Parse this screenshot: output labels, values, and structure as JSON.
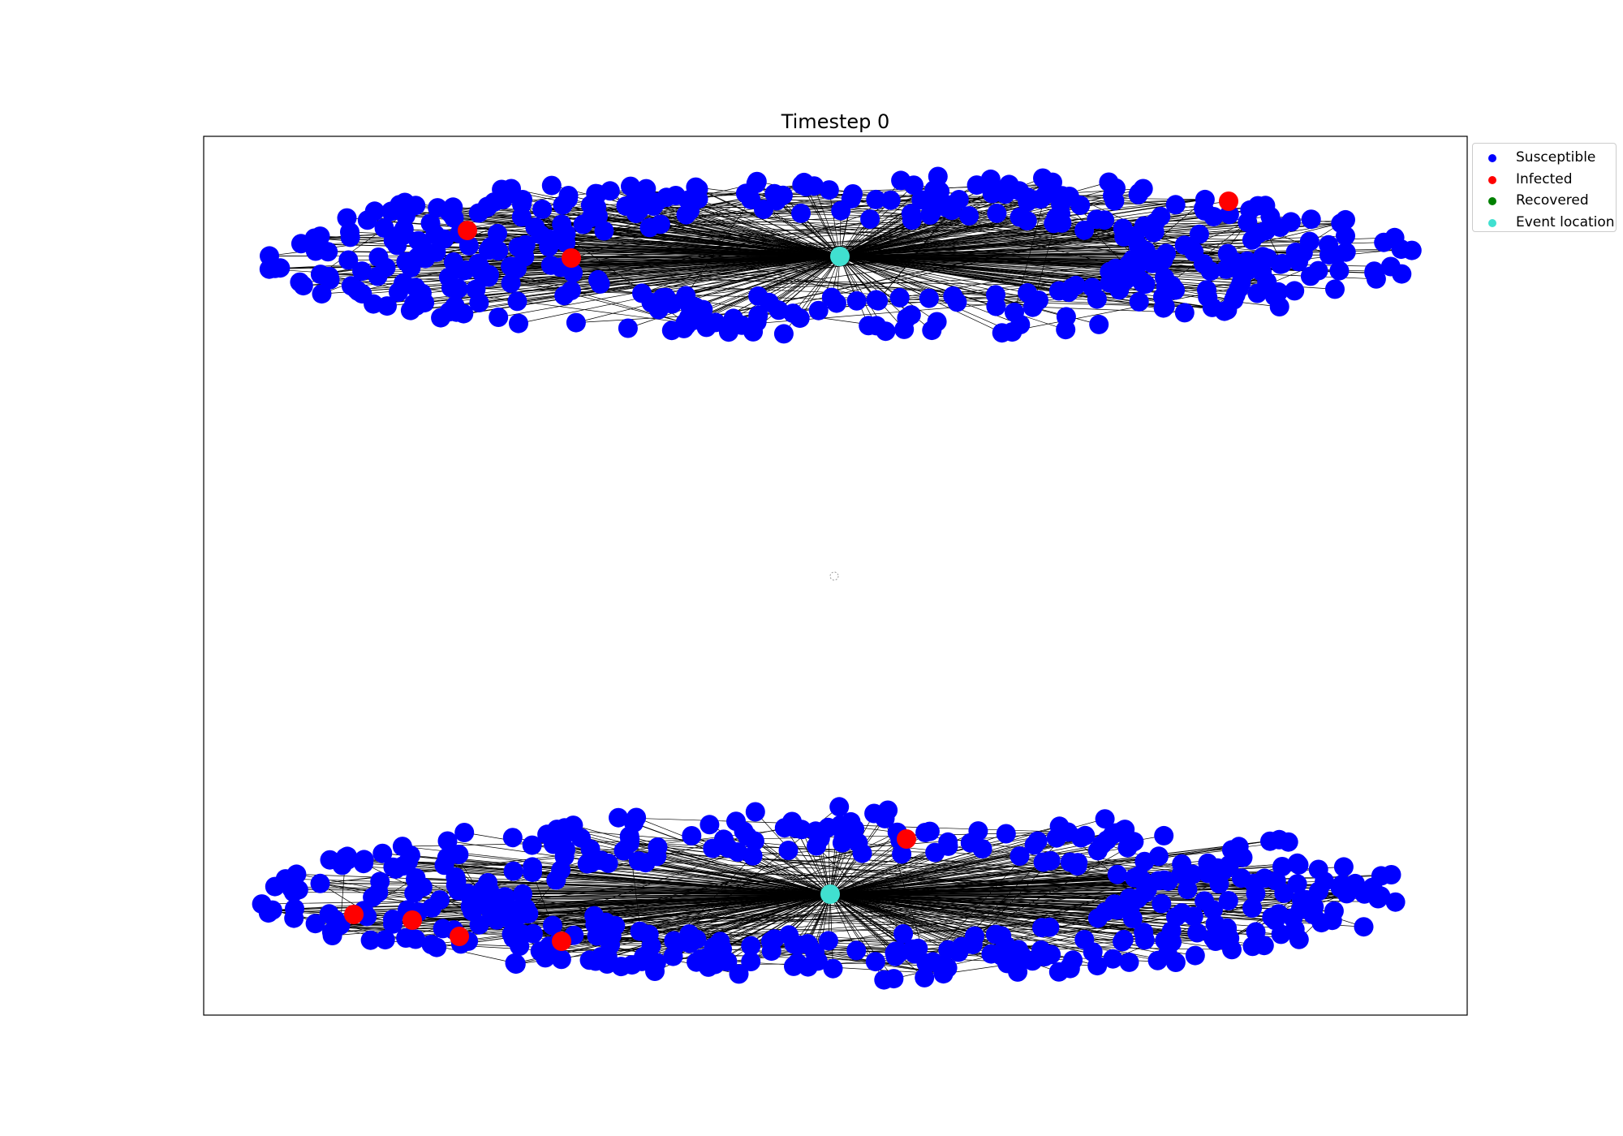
{
  "chart_data": {
    "type": "network",
    "title": "Timestep 0",
    "legend": {
      "placement": "outside-top-right",
      "entries": [
        {
          "label": "Susceptible",
          "color": "#0000ff"
        },
        {
          "label": "Infected",
          "color": "#ff0000"
        },
        {
          "label": "Recovered",
          "color": "#008000"
        },
        {
          "label": "Event location",
          "color": "#40e0d0"
        }
      ]
    },
    "clusters": [
      {
        "name": "upper",
        "hub": "Event location",
        "infected_count": 3,
        "susceptible_count_approx": 420
      },
      {
        "name": "lower",
        "hub": "Event location",
        "infected_count": 5,
        "susceptible_count_approx": 420
      }
    ],
    "edge_color": "#000000",
    "axes_visible": false
  }
}
